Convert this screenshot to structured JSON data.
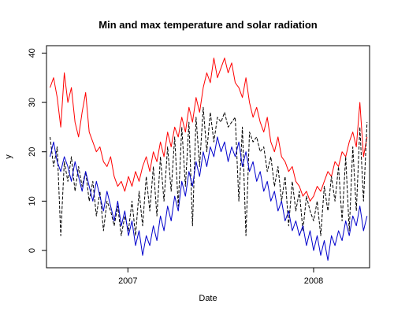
{
  "chart_data": {
    "type": "line",
    "title": "Min and max temperature and solar radiation",
    "xlabel": "Date",
    "ylabel": "y",
    "x_range": [
      "2006-07-25",
      "2008-04-20"
    ],
    "ylim": [
      -3.5,
      41.5
    ],
    "x_ticks": [
      {
        "date": "2007-01-01",
        "label": "2007"
      },
      {
        "date": "2008-01-01",
        "label": "2008"
      }
    ],
    "y_ticks": [
      0,
      10,
      20,
      30,
      40
    ],
    "grid": false,
    "legend": "none",
    "series": [
      {
        "color": "#ff0000",
        "line_style": "solid",
        "points": [
          [
            "2006-08-01",
            33
          ],
          [
            "2006-08-08",
            35
          ],
          [
            "2006-08-15",
            31
          ],
          [
            "2006-08-22",
            25
          ],
          [
            "2006-08-29",
            36
          ],
          [
            "2006-09-05",
            30
          ],
          [
            "2006-09-12",
            33
          ],
          [
            "2006-09-19",
            26
          ],
          [
            "2006-09-26",
            23
          ],
          [
            "2006-10-03",
            28
          ],
          [
            "2006-10-10",
            32
          ],
          [
            "2006-10-17",
            24
          ],
          [
            "2006-10-24",
            22
          ],
          [
            "2006-10-31",
            20
          ],
          [
            "2006-11-07",
            21
          ],
          [
            "2006-11-14",
            18
          ],
          [
            "2006-11-21",
            17
          ],
          [
            "2006-11-28",
            19
          ],
          [
            "2006-12-05",
            15
          ],
          [
            "2006-12-12",
            13
          ],
          [
            "2006-12-19",
            14
          ],
          [
            "2006-12-26",
            12
          ],
          [
            "2007-01-02",
            15
          ],
          [
            "2007-01-09",
            13
          ],
          [
            "2007-01-16",
            16
          ],
          [
            "2007-01-23",
            14
          ],
          [
            "2007-01-30",
            17
          ],
          [
            "2007-02-06",
            19
          ],
          [
            "2007-02-13",
            16
          ],
          [
            "2007-02-20",
            20
          ],
          [
            "2007-02-27",
            18
          ],
          [
            "2007-03-06",
            22
          ],
          [
            "2007-03-13",
            19
          ],
          [
            "2007-03-20",
            24
          ],
          [
            "2007-03-27",
            21
          ],
          [
            "2007-04-03",
            25
          ],
          [
            "2007-04-10",
            23
          ],
          [
            "2007-04-17",
            27
          ],
          [
            "2007-04-24",
            24
          ],
          [
            "2007-05-01",
            29
          ],
          [
            "2007-05-08",
            26
          ],
          [
            "2007-05-15",
            31
          ],
          [
            "2007-05-22",
            28
          ],
          [
            "2007-05-29",
            33
          ],
          [
            "2007-06-05",
            36
          ],
          [
            "2007-06-12",
            34
          ],
          [
            "2007-06-19",
            39
          ],
          [
            "2007-06-26",
            35
          ],
          [
            "2007-07-03",
            37
          ],
          [
            "2007-07-10",
            39
          ],
          [
            "2007-07-17",
            36
          ],
          [
            "2007-07-24",
            38
          ],
          [
            "2007-07-31",
            34
          ],
          [
            "2007-08-07",
            33
          ],
          [
            "2007-08-14",
            31
          ],
          [
            "2007-08-21",
            35
          ],
          [
            "2007-08-28",
            30
          ],
          [
            "2007-09-04",
            27
          ],
          [
            "2007-09-11",
            29
          ],
          [
            "2007-09-18",
            26
          ],
          [
            "2007-09-25",
            24
          ],
          [
            "2007-10-02",
            27
          ],
          [
            "2007-10-09",
            22
          ],
          [
            "2007-10-16",
            20
          ],
          [
            "2007-10-23",
            23
          ],
          [
            "2007-10-30",
            19
          ],
          [
            "2007-11-06",
            18
          ],
          [
            "2007-11-13",
            16
          ],
          [
            "2007-11-20",
            17
          ],
          [
            "2007-11-27",
            14
          ],
          [
            "2007-12-04",
            13
          ],
          [
            "2007-12-11",
            11
          ],
          [
            "2007-12-18",
            12
          ],
          [
            "2007-12-25",
            10
          ],
          [
            "2008-01-01",
            11
          ],
          [
            "2008-01-08",
            13
          ],
          [
            "2008-01-15",
            12
          ],
          [
            "2008-01-22",
            14
          ],
          [
            "2008-01-29",
            16
          ],
          [
            "2008-02-05",
            15
          ],
          [
            "2008-02-12",
            18
          ],
          [
            "2008-02-19",
            17
          ],
          [
            "2008-02-26",
            20
          ],
          [
            "2008-03-04",
            19
          ],
          [
            "2008-03-11",
            22
          ],
          [
            "2008-03-18",
            24
          ],
          [
            "2008-03-25",
            21
          ],
          [
            "2008-04-01",
            30
          ],
          [
            "2008-04-08",
            19
          ],
          [
            "2008-04-15",
            23
          ]
        ]
      },
      {
        "color": "#000000",
        "line_style": "dashed",
        "points": [
          [
            "2006-08-01",
            23
          ],
          [
            "2006-08-08",
            17
          ],
          [
            "2006-08-15",
            21
          ],
          [
            "2006-08-22",
            3
          ],
          [
            "2006-08-29",
            18
          ],
          [
            "2006-09-05",
            14
          ],
          [
            "2006-09-12",
            19
          ],
          [
            "2006-09-19",
            12
          ],
          [
            "2006-09-26",
            17
          ],
          [
            "2006-10-03",
            13
          ],
          [
            "2006-10-10",
            16
          ],
          [
            "2006-10-17",
            10
          ],
          [
            "2006-10-24",
            14
          ],
          [
            "2006-10-31",
            7
          ],
          [
            "2006-11-07",
            12
          ],
          [
            "2006-11-14",
            4
          ],
          [
            "2006-11-21",
            10
          ],
          [
            "2006-11-28",
            8
          ],
          [
            "2006-12-05",
            5
          ],
          [
            "2006-12-12",
            9
          ],
          [
            "2006-12-19",
            3
          ],
          [
            "2006-12-26",
            7
          ],
          [
            "2007-01-02",
            4
          ],
          [
            "2007-01-09",
            10
          ],
          [
            "2007-01-16",
            3
          ],
          [
            "2007-01-23",
            12
          ],
          [
            "2007-01-30",
            5
          ],
          [
            "2007-02-06",
            15
          ],
          [
            "2007-02-13",
            8
          ],
          [
            "2007-02-20",
            17
          ],
          [
            "2007-02-27",
            7
          ],
          [
            "2007-03-06",
            19
          ],
          [
            "2007-03-13",
            10
          ],
          [
            "2007-03-20",
            21
          ],
          [
            "2007-03-27",
            12
          ],
          [
            "2007-04-03",
            23
          ],
          [
            "2007-04-10",
            9
          ],
          [
            "2007-04-17",
            25
          ],
          [
            "2007-04-24",
            13
          ],
          [
            "2007-05-01",
            26
          ],
          [
            "2007-05-08",
            5
          ],
          [
            "2007-05-15",
            27
          ],
          [
            "2007-05-22",
            17
          ],
          [
            "2007-05-29",
            29
          ],
          [
            "2007-06-05",
            20
          ],
          [
            "2007-06-12",
            28
          ],
          [
            "2007-06-19",
            22
          ],
          [
            "2007-06-26",
            27
          ],
          [
            "2007-07-03",
            26
          ],
          [
            "2007-07-10",
            28
          ],
          [
            "2007-07-17",
            25
          ],
          [
            "2007-07-24",
            26
          ],
          [
            "2007-07-31",
            27
          ],
          [
            "2007-08-07",
            10
          ],
          [
            "2007-08-14",
            25
          ],
          [
            "2007-08-21",
            3
          ],
          [
            "2007-08-28",
            24
          ],
          [
            "2007-09-04",
            22
          ],
          [
            "2007-09-11",
            23
          ],
          [
            "2007-09-18",
            20
          ],
          [
            "2007-09-25",
            21
          ],
          [
            "2007-10-02",
            16
          ],
          [
            "2007-10-09",
            19
          ],
          [
            "2007-10-16",
            13
          ],
          [
            "2007-10-23",
            17
          ],
          [
            "2007-10-30",
            10
          ],
          [
            "2007-11-06",
            15
          ],
          [
            "2007-11-13",
            5
          ],
          [
            "2007-11-20",
            14
          ],
          [
            "2007-11-27",
            8
          ],
          [
            "2007-12-04",
            12
          ],
          [
            "2007-12-11",
            4
          ],
          [
            "2007-12-18",
            11
          ],
          [
            "2007-12-25",
            8
          ],
          [
            "2008-01-01",
            6
          ],
          [
            "2008-01-08",
            10
          ],
          [
            "2008-01-15",
            3
          ],
          [
            "2008-01-22",
            13
          ],
          [
            "2008-01-29",
            8
          ],
          [
            "2008-02-05",
            15
          ],
          [
            "2008-02-12",
            10
          ],
          [
            "2008-02-19",
            17
          ],
          [
            "2008-02-26",
            6
          ],
          [
            "2008-03-04",
            19
          ],
          [
            "2008-03-11",
            4
          ],
          [
            "2008-03-18",
            21
          ],
          [
            "2008-03-25",
            8
          ],
          [
            "2008-04-01",
            25
          ],
          [
            "2008-04-08",
            10
          ],
          [
            "2008-04-15",
            26
          ]
        ]
      },
      {
        "color": "#0000cc",
        "line_style": "solid",
        "points": [
          [
            "2006-08-01",
            19
          ],
          [
            "2006-08-08",
            22
          ],
          [
            "2006-08-15",
            18
          ],
          [
            "2006-08-22",
            16
          ],
          [
            "2006-08-29",
            19
          ],
          [
            "2006-09-05",
            17
          ],
          [
            "2006-09-12",
            14
          ],
          [
            "2006-09-19",
            18
          ],
          [
            "2006-09-26",
            15
          ],
          [
            "2006-10-03",
            12
          ],
          [
            "2006-10-10",
            16
          ],
          [
            "2006-10-17",
            13
          ],
          [
            "2006-10-24",
            10
          ],
          [
            "2006-10-31",
            14
          ],
          [
            "2006-11-07",
            11
          ],
          [
            "2006-11-14",
            8
          ],
          [
            "2006-11-21",
            12
          ],
          [
            "2006-11-28",
            9
          ],
          [
            "2006-12-05",
            6
          ],
          [
            "2006-12-12",
            10
          ],
          [
            "2006-12-19",
            5
          ],
          [
            "2006-12-26",
            8
          ],
          [
            "2007-01-02",
            3
          ],
          [
            "2007-01-09",
            6
          ],
          [
            "2007-01-16",
            1
          ],
          [
            "2007-01-23",
            4
          ],
          [
            "2007-01-30",
            -1
          ],
          [
            "2007-02-06",
            3
          ],
          [
            "2007-02-13",
            1
          ],
          [
            "2007-02-20",
            5
          ],
          [
            "2007-02-27",
            2
          ],
          [
            "2007-03-06",
            7
          ],
          [
            "2007-03-13",
            4
          ],
          [
            "2007-03-20",
            9
          ],
          [
            "2007-03-27",
            6
          ],
          [
            "2007-04-03",
            11
          ],
          [
            "2007-04-10",
            8
          ],
          [
            "2007-04-17",
            14
          ],
          [
            "2007-04-24",
            11
          ],
          [
            "2007-05-01",
            16
          ],
          [
            "2007-05-08",
            13
          ],
          [
            "2007-05-15",
            18
          ],
          [
            "2007-05-22",
            15
          ],
          [
            "2007-05-29",
            20
          ],
          [
            "2007-06-05",
            17
          ],
          [
            "2007-06-12",
            21
          ],
          [
            "2007-06-19",
            19
          ],
          [
            "2007-06-26",
            23
          ],
          [
            "2007-07-03",
            20
          ],
          [
            "2007-07-10",
            22
          ],
          [
            "2007-07-17",
            18
          ],
          [
            "2007-07-24",
            21
          ],
          [
            "2007-07-31",
            19
          ],
          [
            "2007-08-07",
            22
          ],
          [
            "2007-08-14",
            17
          ],
          [
            "2007-08-21",
            20
          ],
          [
            "2007-08-28",
            16
          ],
          [
            "2007-09-04",
            18
          ],
          [
            "2007-09-11",
            14
          ],
          [
            "2007-09-18",
            16
          ],
          [
            "2007-09-25",
            12
          ],
          [
            "2007-10-02",
            14
          ],
          [
            "2007-10-09",
            10
          ],
          [
            "2007-10-16",
            12
          ],
          [
            "2007-10-23",
            8
          ],
          [
            "2007-10-30",
            10
          ],
          [
            "2007-11-06",
            6
          ],
          [
            "2007-11-13",
            8
          ],
          [
            "2007-11-20",
            4
          ],
          [
            "2007-11-27",
            6
          ],
          [
            "2007-12-04",
            3
          ],
          [
            "2007-12-11",
            5
          ],
          [
            "2007-12-18",
            1
          ],
          [
            "2007-12-25",
            4
          ],
          [
            "2008-01-01",
            0
          ],
          [
            "2008-01-08",
            3
          ],
          [
            "2008-01-15",
            -1
          ],
          [
            "2008-01-22",
            2
          ],
          [
            "2008-01-29",
            -2
          ],
          [
            "2008-02-05",
            3
          ],
          [
            "2008-02-12",
            1
          ],
          [
            "2008-02-19",
            4
          ],
          [
            "2008-02-26",
            2
          ],
          [
            "2008-03-04",
            6
          ],
          [
            "2008-03-11",
            3
          ],
          [
            "2008-03-18",
            7
          ],
          [
            "2008-03-25",
            5
          ],
          [
            "2008-04-01",
            9
          ],
          [
            "2008-04-08",
            4
          ],
          [
            "2008-04-15",
            7
          ]
        ]
      }
    ]
  }
}
